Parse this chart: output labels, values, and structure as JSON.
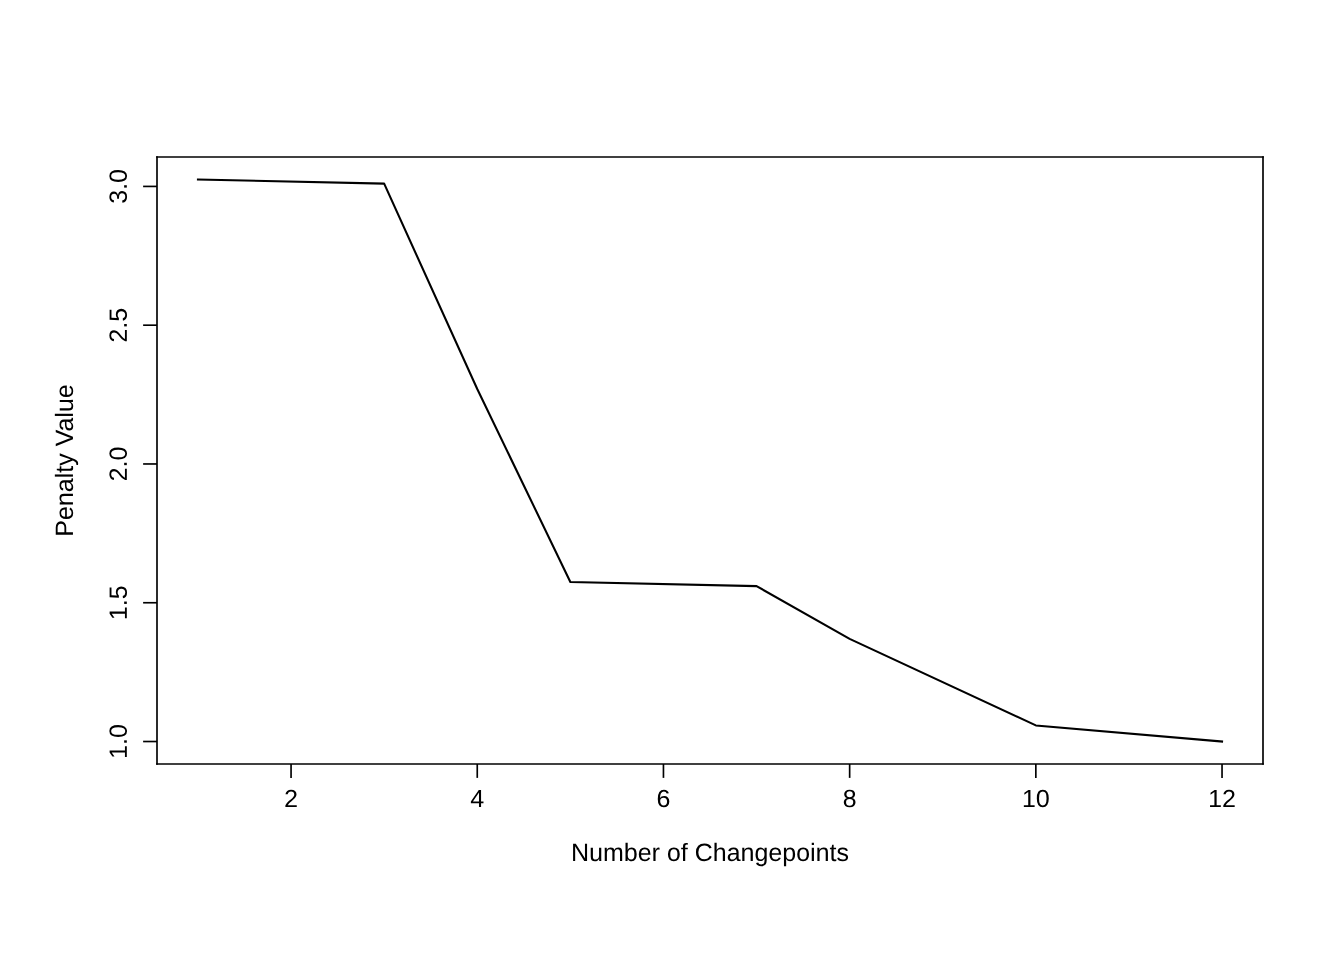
{
  "chart_data": {
    "type": "line",
    "xlabel": "Number of Changepoints",
    "ylabel": "Penalty Value",
    "x": [
      1,
      3,
      4,
      5,
      7,
      8,
      10,
      12
    ],
    "series": [
      {
        "color": "#000000",
        "values": [
          3.025,
          3.01,
          2.27,
          1.575,
          1.56,
          1.37,
          1.058,
          1.0
        ]
      }
    ],
    "xlim": [
      0.56,
      12.44
    ],
    "ylim": [
      0.919,
      3.106
    ],
    "xticks": [
      2,
      4,
      6,
      8,
      10,
      12
    ],
    "yticks": [
      {
        "value": 1.0,
        "label": "1.0"
      },
      {
        "value": 1.5,
        "label": "1.5"
      },
      {
        "value": 2.0,
        "label": "2.0"
      },
      {
        "value": 2.5,
        "label": "2.5"
      },
      {
        "value": 3.0,
        "label": "3.0"
      }
    ],
    "grid": false,
    "legend": false,
    "marker": "none",
    "line_style": "solid"
  }
}
